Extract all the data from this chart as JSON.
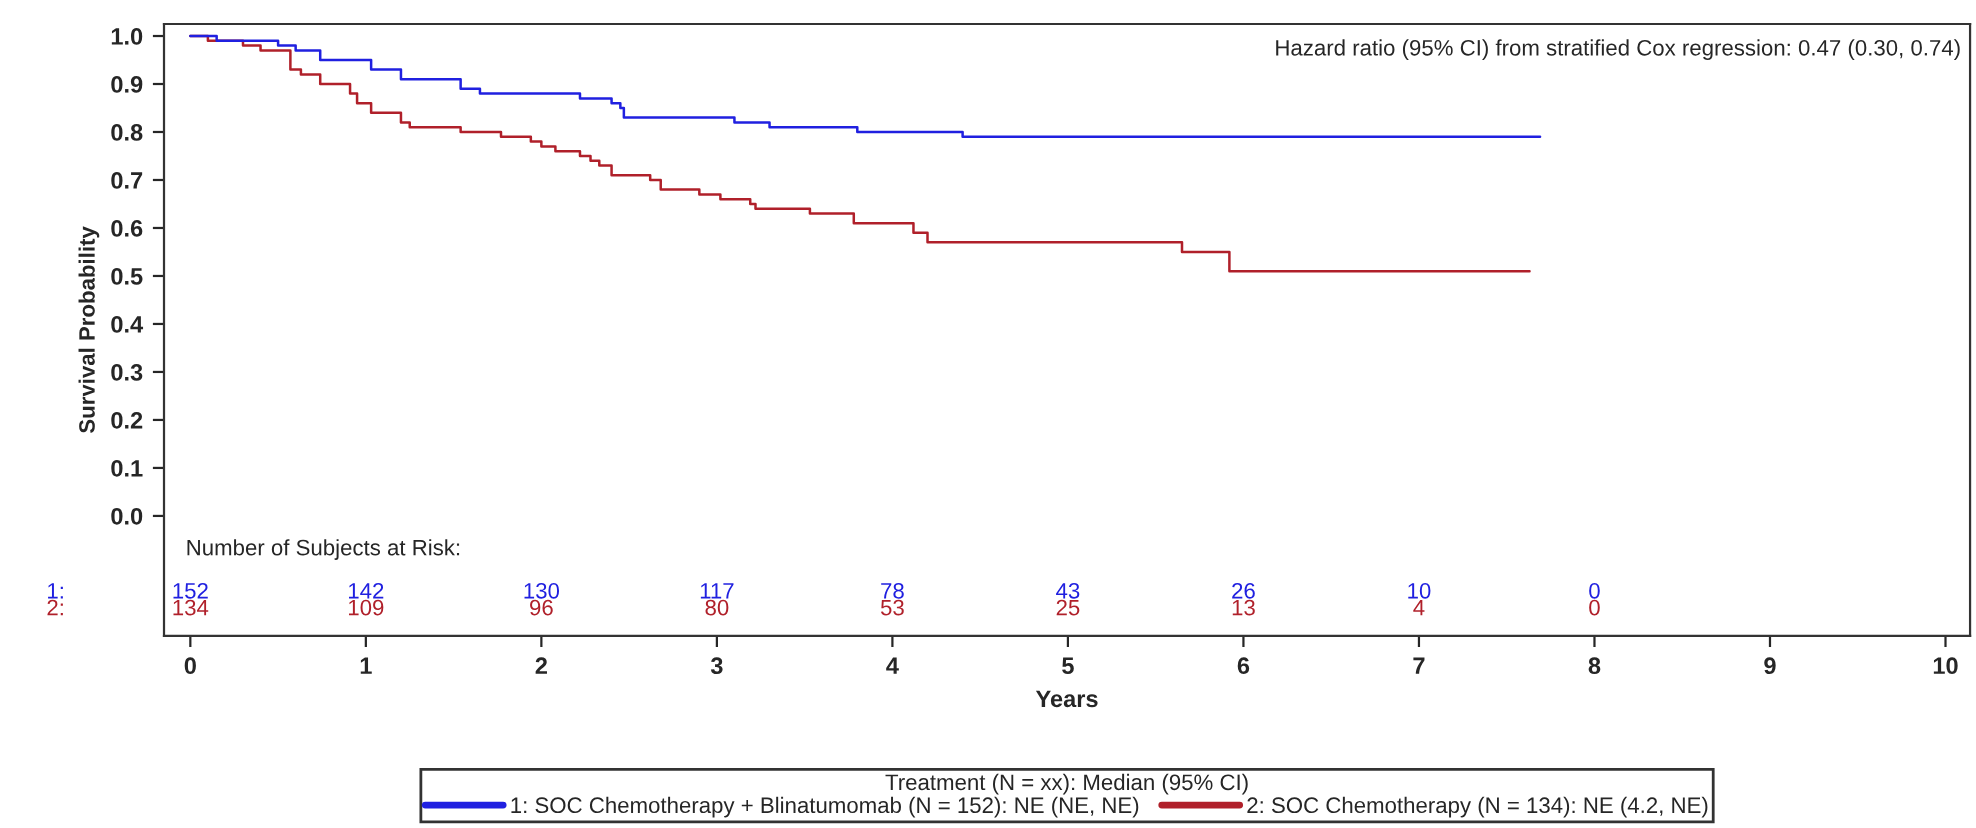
{
  "chart_data": {
    "type": "step",
    "xlabel": "Years",
    "ylabel": "Survival Probability",
    "legend_title": "Treatment (N = xx): Median (95% CI)",
    "legend": "bottom",
    "xlim": [
      -0.15,
      10.14
    ],
    "ylim": [
      -0.25,
      1.025
    ],
    "xticks": [
      0,
      1,
      2,
      3,
      4,
      5,
      6,
      7,
      8,
      9,
      10
    ],
    "yticks": [
      {
        "value": 0,
        "label": "0.0"
      },
      0.1,
      0.2,
      0.3,
      0.4,
      0.5,
      0.6,
      0.7,
      0.8,
      0.9,
      {
        "value": 1,
        "label": "1.0"
      }
    ],
    "series": [
      {
        "name": "1: SOC Chemotherapy + Blinatumomab (N = 152): NE (NE, NE)",
        "color": "#2020e0",
        "x": [
          0,
          0.15,
          0.5,
          0.6,
          0.74,
          1.03,
          1.2,
          1.54,
          1.65,
          2.22,
          2.4,
          2.45,
          2.47,
          3.1,
          3.3,
          3.8,
          4.4,
          7.69
        ],
        "values": [
          1.0,
          0.99,
          0.98,
          0.97,
          0.95,
          0.93,
          0.91,
          0.89,
          0.88,
          0.87,
          0.86,
          0.85,
          0.83,
          0.82,
          0.81,
          0.8,
          0.79,
          0.79
        ]
      },
      {
        "name": "2: SOC Chemotherapy (N = 134): NE (4.2, NE)",
        "color": "#b0202a",
        "x": [
          0,
          0.1,
          0.3,
          0.4,
          0.57,
          0.63,
          0.74,
          0.91,
          0.95,
          1.03,
          1.2,
          1.25,
          1.54,
          1.77,
          1.94,
          2.0,
          2.08,
          2.22,
          2.28,
          2.33,
          2.4,
          2.62,
          2.68,
          2.9,
          3.02,
          3.19,
          3.22,
          3.53,
          3.78,
          4.12,
          4.2,
          5.65,
          5.92,
          7.63
        ],
        "values": [
          1.0,
          0.99,
          0.98,
          0.97,
          0.93,
          0.92,
          0.9,
          0.88,
          0.86,
          0.84,
          0.82,
          0.81,
          0.8,
          0.79,
          0.78,
          0.77,
          0.76,
          0.75,
          0.74,
          0.73,
          0.71,
          0.7,
          0.68,
          0.67,
          0.66,
          0.65,
          0.64,
          0.63,
          0.61,
          0.59,
          0.57,
          0.55,
          0.51,
          0.51
        ]
      }
    ],
    "annotations": [
      "Hazard ratio (95% CI) from stratified Cox regression: 0.47 (0.30, 0.74)",
      "Number of Subjects at Risk:",
      "1:",
      "2:",
      "152",
      "142",
      "130",
      "117",
      "78",
      "43",
      "26",
      "10",
      "0",
      "134",
      "109",
      "96",
      "80",
      "53",
      "25",
      "13",
      "4",
      "0"
    ]
  }
}
